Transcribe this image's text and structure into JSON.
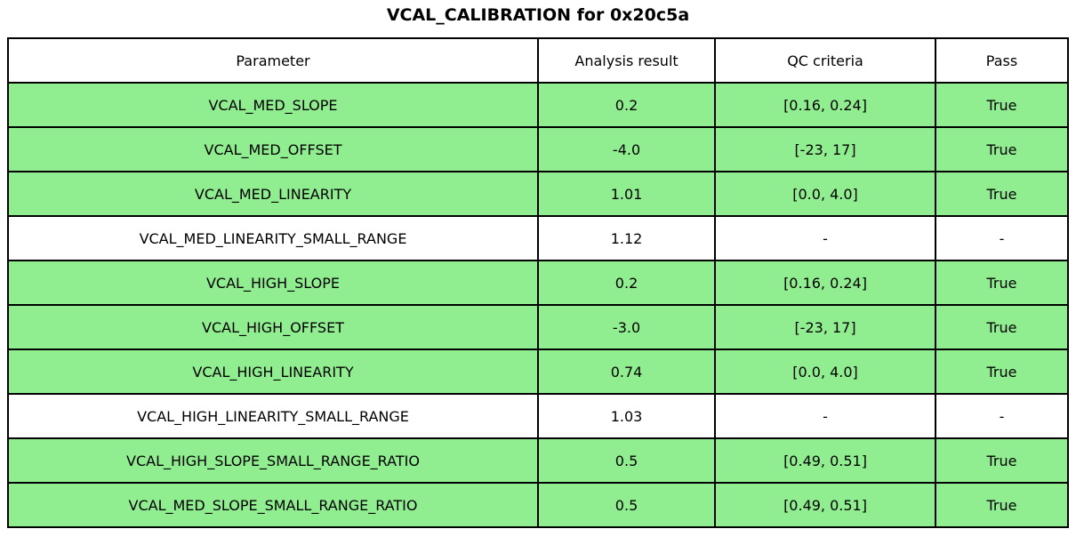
{
  "title": "VCAL_CALIBRATION for 0x20c5a",
  "colors": {
    "pass_row_green": "#90ee90",
    "na_row_white": "#ffffff",
    "border_black": "#000000",
    "text_black": "#000000"
  },
  "chart_data": {
    "type": "table",
    "title": "VCAL_CALIBRATION for 0x20c5a",
    "columns": [
      "Parameter",
      "Analysis result",
      "QC criteria",
      "Pass"
    ],
    "rows": [
      {
        "parameter": "VCAL_MED_SLOPE",
        "result": "0.2",
        "criteria": "[0.16, 0.24]",
        "pass": "True",
        "highlight": true
      },
      {
        "parameter": "VCAL_MED_OFFSET",
        "result": "-4.0",
        "criteria": "[-23, 17]",
        "pass": "True",
        "highlight": true
      },
      {
        "parameter": "VCAL_MED_LINEARITY",
        "result": "1.01",
        "criteria": "[0.0, 4.0]",
        "pass": "True",
        "highlight": true
      },
      {
        "parameter": "VCAL_MED_LINEARITY_SMALL_RANGE",
        "result": "1.12",
        "criteria": "-",
        "pass": "-",
        "highlight": false
      },
      {
        "parameter": "VCAL_HIGH_SLOPE",
        "result": "0.2",
        "criteria": "[0.16, 0.24]",
        "pass": "True",
        "highlight": true
      },
      {
        "parameter": "VCAL_HIGH_OFFSET",
        "result": "-3.0",
        "criteria": "[-23, 17]",
        "pass": "True",
        "highlight": true
      },
      {
        "parameter": "VCAL_HIGH_LINEARITY",
        "result": "0.74",
        "criteria": "[0.0, 4.0]",
        "pass": "True",
        "highlight": true
      },
      {
        "parameter": "VCAL_HIGH_LINEARITY_SMALL_RANGE",
        "result": "1.03",
        "criteria": "-",
        "pass": "-",
        "highlight": false
      },
      {
        "parameter": "VCAL_HIGH_SLOPE_SMALL_RANGE_RATIO",
        "result": "0.5",
        "criteria": "[0.49, 0.51]",
        "pass": "True",
        "highlight": true
      },
      {
        "parameter": "VCAL_MED_SLOPE_SMALL_RANGE_RATIO",
        "result": "0.5",
        "criteria": "[0.49, 0.51]",
        "pass": "True",
        "highlight": true
      }
    ]
  }
}
